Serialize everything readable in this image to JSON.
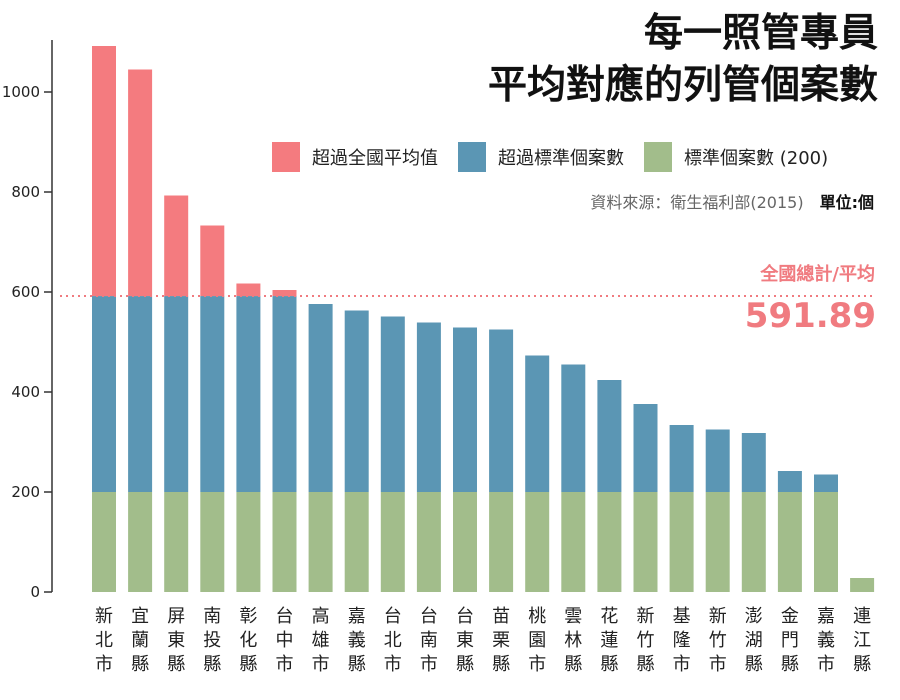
{
  "title_line1": "每一照管專員",
  "title_line2": "平均對應的列管個案數",
  "legend": [
    {
      "label": "超過全國平均值",
      "color": "#f47b7f"
    },
    {
      "label": "超過標準個案數",
      "color": "#5b96b4"
    },
    {
      "label": "標準個案數 (200)",
      "color": "#a2bd8b"
    }
  ],
  "source": "資料來源：衛生福利部(2015)",
  "unit": "單位:個",
  "avg_label": "全國總計/平均",
  "avg_value": "591.89",
  "chart_data": {
    "type": "bar",
    "stacked": true,
    "categories": [
      "新北市",
      "宜蘭縣",
      "屏東縣",
      "南投縣",
      "彰化縣",
      "台中市",
      "高雄市",
      "嘉義縣",
      "台北市",
      "台南市",
      "台東縣",
      "苗栗縣",
      "桃園市",
      "雲林縣",
      "花蓮縣",
      "新竹縣",
      "基隆市",
      "新竹市",
      "澎湖縣",
      "金門縣",
      "嘉義市",
      "連江縣"
    ],
    "values": [
      1092,
      1045,
      793,
      733,
      617,
      604,
      576,
      563,
      551,
      539,
      529,
      525,
      473,
      455,
      424,
      376,
      334,
      325,
      318,
      242,
      235,
      28
    ],
    "standard": 200,
    "average": 591.89,
    "ylim": [
      0,
      1100
    ],
    "yticks": [
      0,
      200,
      400,
      600,
      800,
      1000
    ],
    "colors": {
      "above_avg": "#f47b7f",
      "above_std": "#5b96b4",
      "standard": "#a2bd8b",
      "avg_line": "#f07b80"
    }
  }
}
